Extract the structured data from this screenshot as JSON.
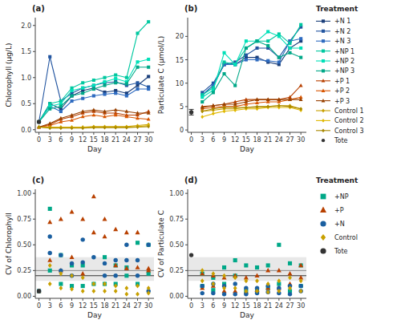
{
  "chart_data": [
    {
      "type": "line",
      "title": "(a)",
      "x_label": "Day",
      "y_label": "Chlorophyll (µg/L)",
      "x": [
        0,
        3,
        6,
        9,
        12,
        15,
        18,
        21,
        24,
        27,
        30
      ],
      "xlim": [
        -1,
        31.5
      ],
      "xticks": [
        0,
        3,
        6,
        9,
        12,
        15,
        18,
        21,
        24,
        27,
        30
      ],
      "ylim": [
        -0.05,
        2.15
      ],
      "yticks": [
        {
          "value": 0.0,
          "label": "0.0"
        },
        0.5,
        {
          "value": 1.0,
          "label": "1.0"
        },
        1.5,
        {
          "value": 2.0,
          "label": "2.0"
        }
      ],
      "grid": false,
      "series": [
        {
          "name": "+N 1",
          "color": "#1a3e7a",
          "marker": "square",
          "values": [
            0.15,
            0.5,
            0.4,
            0.65,
            0.75,
            0.8,
            0.72,
            0.75,
            0.7,
            0.85,
            1.02
          ]
        },
        {
          "name": "+N 2",
          "color": "#2255a0",
          "marker": "square",
          "values": [
            0.15,
            1.4,
            0.55,
            0.7,
            0.8,
            0.85,
            0.9,
            0.92,
            0.85,
            0.9,
            0.82
          ]
        },
        {
          "name": "+N 3",
          "color": "#2e6bc0",
          "marker": "square",
          "values": [
            0.15,
            0.45,
            0.35,
            0.55,
            0.6,
            0.65,
            0.68,
            0.7,
            0.65,
            0.78,
            0.78
          ]
        },
        {
          "name": "+NP 1",
          "color": "#00c8a0",
          "marker": "square",
          "values": [
            0.15,
            0.5,
            0.55,
            0.8,
            0.9,
            0.95,
            1.0,
            1.05,
            1.0,
            1.85,
            2.07
          ]
        },
        {
          "name": "+NP 2",
          "color": "#00e0b8",
          "marker": "square",
          "values": [
            0.15,
            0.45,
            0.5,
            0.75,
            0.8,
            0.85,
            0.92,
            0.98,
            0.92,
            1.3,
            1.35
          ]
        },
        {
          "name": "+NP 3",
          "color": "#00a888",
          "marker": "square",
          "values": [
            0.15,
            0.4,
            0.45,
            0.65,
            0.7,
            0.78,
            0.85,
            0.9,
            0.88,
            1.2,
            1.2
          ]
        },
        {
          "name": "+P 1",
          "color": "#b84000",
          "marker": "triangle",
          "values": [
            0.05,
            0.1,
            0.2,
            0.25,
            0.32,
            0.35,
            0.32,
            0.32,
            0.28,
            0.28,
            0.35
          ]
        },
        {
          "name": "+P 2",
          "color": "#d85500",
          "marker": "triangle",
          "values": [
            0.05,
            0.08,
            0.15,
            0.18,
            0.25,
            0.28,
            0.25,
            0.28,
            0.25,
            0.22,
            0.2
          ]
        },
        {
          "name": "+P 3",
          "color": "#984000",
          "marker": "triangle",
          "values": [
            0.05,
            0.12,
            0.22,
            0.28,
            0.35,
            0.38,
            0.35,
            0.38,
            0.35,
            0.32,
            0.32
          ]
        },
        {
          "name": "Control 1",
          "color": "#c8a000",
          "marker": "diamond",
          "values": [
            0.05,
            0.05,
            0.05,
            0.05,
            0.05,
            0.06,
            0.06,
            0.06,
            0.06,
            0.08,
            0.1
          ]
        },
        {
          "name": "Control 2",
          "color": "#e0b800",
          "marker": "diamond",
          "values": [
            0.05,
            0.04,
            0.04,
            0.04,
            0.04,
            0.05,
            0.05,
            0.05,
            0.05,
            0.06,
            0.08
          ]
        },
        {
          "name": "Control 3",
          "color": "#a88800",
          "marker": "diamond",
          "values": [
            0.05,
            0.03,
            0.03,
            0.03,
            0.03,
            0.04,
            0.04,
            0.04,
            0.04,
            0.05,
            0.06
          ]
        },
        {
          "name": "Tote",
          "type": "scatter",
          "color": "#333333",
          "marker": "circle",
          "x": [
            0
          ],
          "values": [
            0.15
          ]
        }
      ]
    },
    {
      "type": "line",
      "title": "(b)",
      "x_label": "Day",
      "y_label": "Particulate C (µmol/L)",
      "x": [
        0,
        3,
        6,
        9,
        12,
        15,
        18,
        21,
        24,
        27,
        30
      ],
      "xlim": [
        -1,
        31.5
      ],
      "xticks": [
        0,
        3,
        6,
        9,
        12,
        15,
        18,
        21,
        24,
        27,
        30
      ],
      "ylim": [
        -0.5,
        24
      ],
      "yticks": [
        0,
        5,
        10,
        15,
        20
      ],
      "grid": false,
      "legend": "right",
      "legend_title": "Treatment",
      "series": [
        {
          "name": "+N 1",
          "color": "#1a3e7a",
          "marker": "square",
          "values": [
            null,
            7.5,
            9.5,
            14.0,
            14.0,
            15.5,
            15.5,
            14.5,
            14.0,
            17.5,
            19.0
          ]
        },
        {
          "name": "+N 2",
          "color": "#2255a0",
          "marker": "square",
          "values": [
            null,
            8.0,
            10.0,
            14.0,
            14.5,
            16.0,
            17.5,
            17.5,
            15.5,
            19.0,
            22.0
          ]
        },
        {
          "name": "+N 3",
          "color": "#2e6bc0",
          "marker": "square",
          "values": [
            null,
            7.5,
            9.5,
            14.0,
            14.0,
            15.0,
            15.0,
            14.8,
            14.5,
            19.0,
            19.5
          ]
        },
        {
          "name": "+NP 1",
          "color": "#00c8a0",
          "marker": "square",
          "values": [
            null,
            7.5,
            9.0,
            14.5,
            14.0,
            17.5,
            19.0,
            19.0,
            20.5,
            18.5,
            22.5
          ]
        },
        {
          "name": "+NP 2",
          "color": "#00e0b8",
          "marker": "square",
          "values": [
            null,
            7.0,
            8.5,
            16.5,
            14.0,
            19.0,
            19.0,
            21.0,
            20.0,
            17.5,
            17.5
          ]
        },
        {
          "name": "+NP 3",
          "color": "#00a888",
          "marker": "square",
          "values": [
            null,
            6.0,
            8.0,
            12.0,
            9.5,
            17.5,
            19.0,
            18.0,
            15.5,
            16.5,
            15.5
          ]
        },
        {
          "name": "+P 1",
          "color": "#b84000",
          "marker": "triangle",
          "values": [
            null,
            5.0,
            5.2,
            5.5,
            6.0,
            6.5,
            6.5,
            6.5,
            6.5,
            7.0,
            9.5
          ]
        },
        {
          "name": "+P 2",
          "color": "#d85500",
          "marker": "triangle",
          "values": [
            null,
            4.5,
            4.8,
            5.0,
            5.0,
            5.5,
            5.8,
            6.0,
            6.0,
            6.5,
            7.0
          ]
        },
        {
          "name": "+P 3",
          "color": "#984000",
          "marker": "triangle",
          "values": [
            null,
            4.8,
            5.2,
            5.5,
            5.5,
            6.0,
            6.5,
            6.5,
            6.5,
            6.5,
            6.5
          ]
        },
        {
          "name": "Control 1",
          "color": "#c8a000",
          "marker": "diamond",
          "values": [
            null,
            4.0,
            4.2,
            4.5,
            4.5,
            4.8,
            4.8,
            5.0,
            5.2,
            5.2,
            4.5
          ]
        },
        {
          "name": "Control 2",
          "color": "#e0b800",
          "marker": "diamond",
          "values": [
            null,
            2.8,
            3.5,
            4.0,
            4.2,
            4.5,
            4.5,
            4.8,
            4.8,
            4.8,
            4.2
          ]
        },
        {
          "name": "Control 3",
          "color": "#a88800",
          "marker": "diamond",
          "values": [
            null,
            4.0,
            4.5,
            4.8,
            4.8,
            4.8,
            5.0,
            5.0,
            5.2,
            5.0,
            4.5
          ]
        },
        {
          "name": "Tote",
          "type": "scatter",
          "color": "#333333",
          "marker": "circle",
          "x": [
            0
          ],
          "values": [
            3.8
          ],
          "errors": [
            0.6
          ]
        }
      ]
    },
    {
      "type": "scatter",
      "title": "(c)",
      "x_label": "Day",
      "y_label": "CV of Chlorophyll",
      "xlim": [
        -1,
        31.5
      ],
      "xticks": [
        0,
        3,
        6,
        9,
        12,
        15,
        18,
        21,
        24,
        27,
        30
      ],
      "ylim": [
        -0.02,
        1.04
      ],
      "yticks": [
        {
          "value": 0.0,
          "label": "0.00"
        },
        0.25,
        {
          "value": 0.5,
          "label": "0.50"
        },
        0.75,
        {
          "value": 1.0,
          "label": "1.00"
        }
      ],
      "grid": false,
      "band": {
        "low": 0.15,
        "high": 0.38,
        "color": "#d8d8d8"
      },
      "hlines": [
        {
          "value": 0.2,
          "color": "#333333"
        },
        {
          "value": 0.25,
          "color": "#888888"
        }
      ],
      "series": [
        {
          "name": "+NP",
          "color": "#00a888",
          "marker": "square",
          "x": [
            0,
            3,
            3,
            6,
            6,
            9,
            9,
            12,
            12,
            15,
            18,
            18,
            21,
            21,
            24,
            24,
            27,
            27,
            30,
            30
          ],
          "values": [
            0.05,
            0.85,
            0.25,
            0.4,
            0.12,
            0.1,
            0.3,
            0.1,
            0.3,
            0.12,
            0.38,
            0.12,
            0.3,
            0.12,
            0.28,
            0.2,
            0.52,
            0.12,
            0.5,
            0.22
          ]
        },
        {
          "name": "+P",
          "color": "#b84000",
          "marker": "triangle",
          "x": [
            0,
            3,
            3,
            6,
            6,
            9,
            9,
            12,
            12,
            15,
            15,
            18,
            18,
            21,
            21,
            24,
            24,
            27,
            27,
            30,
            30
          ],
          "values": [
            0.05,
            0.72,
            0.35,
            0.75,
            0.25,
            0.82,
            0.38,
            0.75,
            0.22,
            0.97,
            0.62,
            0.75,
            0.58,
            0.65,
            0.3,
            0.62,
            0.27,
            0.62,
            0.28,
            0.27,
            0.25
          ]
        },
        {
          "name": "+N",
          "color": "#1a5fa0",
          "marker": "circle",
          "x": [
            0,
            3,
            3,
            6,
            6,
            9,
            9,
            12,
            12,
            15,
            18,
            18,
            21,
            21,
            24,
            24,
            27,
            27,
            30,
            30
          ],
          "values": [
            0.05,
            0.42,
            0.58,
            0.25,
            0.4,
            0.2,
            0.32,
            0.33,
            0.55,
            0.38,
            0.2,
            0.32,
            0.35,
            0.2,
            0.35,
            0.5,
            0.2,
            0.35,
            0.05,
            0.5
          ]
        },
        {
          "name": "Control",
          "color": "#c8a000",
          "marker": "diamond",
          "x": [
            0,
            3,
            3,
            6,
            6,
            9,
            9,
            12,
            12,
            15,
            15,
            18,
            18,
            21,
            21,
            24,
            24,
            27,
            27,
            30,
            30
          ],
          "values": [
            0.05,
            0.3,
            0.12,
            0.22,
            0.08,
            0.2,
            0.07,
            0.18,
            0.05,
            0.12,
            0.05,
            0.12,
            0.05,
            0.1,
            0.05,
            0.08,
            0.02,
            0.1,
            0.02,
            0.08,
            0.03
          ]
        },
        {
          "name": "Tote",
          "color": "#333333",
          "marker": "circle",
          "x": [
            0
          ],
          "values": [
            0.05
          ]
        }
      ]
    },
    {
      "type": "scatter",
      "title": "(d)",
      "x_label": "Day",
      "y_label": "CV of Particulate C",
      "xlim": [
        -1,
        31.5
      ],
      "xticks": [
        0,
        3,
        6,
        9,
        12,
        15,
        18,
        21,
        24,
        27,
        30
      ],
      "ylim": [
        -0.02,
        1.04
      ],
      "yticks": [
        {
          "value": 0.0,
          "label": "0.00"
        },
        0.25,
        {
          "value": 0.5,
          "label": "0.50"
        },
        0.75,
        {
          "value": 1.0,
          "label": "1.00"
        }
      ],
      "grid": false,
      "legend": "right",
      "legend_title": "Treatment",
      "band": {
        "low": 0.15,
        "high": 0.38,
        "color": "#d8d8d8"
      },
      "hlines": [
        {
          "value": 0.2,
          "color": "#333333"
        },
        {
          "value": 0.25,
          "color": "#888888"
        }
      ],
      "series": [
        {
          "name": "+NP",
          "color": "#00a888",
          "marker": "square",
          "x": [
            3,
            3,
            6,
            6,
            9,
            9,
            12,
            12,
            15,
            15,
            18,
            18,
            21,
            21,
            24,
            24,
            27,
            27,
            30,
            30
          ],
          "values": [
            0.1,
            0.22,
            0.06,
            0.18,
            0.12,
            0.28,
            0.2,
            0.35,
            0.05,
            0.3,
            0.05,
            0.28,
            0.08,
            0.3,
            0.12,
            0.5,
            0.05,
            0.32,
            0.1,
            0.3
          ]
        },
        {
          "name": "+P",
          "color": "#b84000",
          "marker": "triangle",
          "x": [
            3,
            3,
            6,
            6,
            9,
            9,
            12,
            12,
            15,
            15,
            18,
            18,
            21,
            21,
            24,
            24,
            27,
            27,
            30,
            30
          ],
          "values": [
            0.08,
            0.22,
            0.1,
            0.2,
            0.05,
            0.18,
            0.05,
            0.2,
            0.04,
            0.18,
            0.06,
            0.2,
            0.08,
            0.25,
            0.08,
            0.25,
            0.12,
            0.22,
            0.18,
            0.3
          ]
        },
        {
          "name": "+N",
          "color": "#1a5fa0",
          "marker": "circle",
          "x": [
            3,
            3,
            6,
            6,
            9,
            9,
            12,
            12,
            15,
            15,
            18,
            18,
            21,
            21,
            24,
            24,
            27,
            27,
            30,
            30
          ],
          "values": [
            0.03,
            0.1,
            0.03,
            0.12,
            0.02,
            0.1,
            0.02,
            0.12,
            0.02,
            0.08,
            0.03,
            0.08,
            0.04,
            0.1,
            0.03,
            0.08,
            0.02,
            0.1,
            0.05,
            0.1
          ]
        },
        {
          "name": "Control",
          "color": "#c8a000",
          "marker": "diamond",
          "x": [
            3,
            3,
            6,
            6,
            9,
            9,
            12,
            12,
            15,
            15,
            18,
            18,
            21,
            21,
            24,
            24,
            27,
            27,
            30,
            30
          ],
          "values": [
            0.15,
            0.25,
            0.12,
            0.22,
            0.08,
            0.2,
            0.08,
            0.18,
            0.05,
            0.15,
            0.05,
            0.15,
            0.04,
            0.12,
            0.05,
            0.15,
            0.08,
            0.18,
            0.05,
            0.15
          ]
        },
        {
          "name": "Tote",
          "color": "#333333",
          "marker": "circle",
          "x": [
            0
          ],
          "values": [
            0.4
          ]
        }
      ]
    }
  ]
}
